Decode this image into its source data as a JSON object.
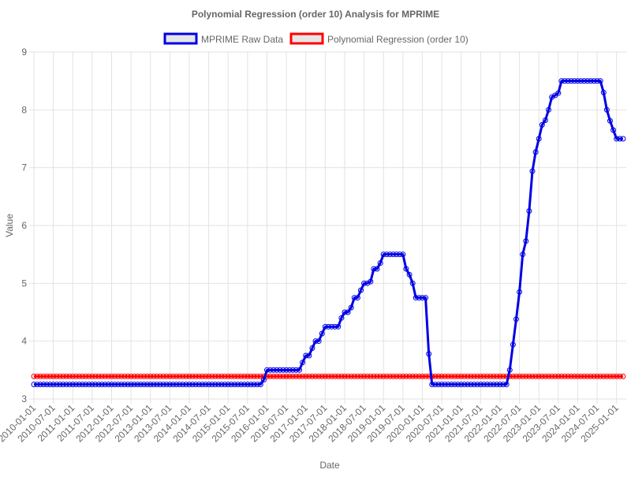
{
  "chart_data": {
    "type": "line",
    "title": "Polynomial Regression (order 10) Analysis for MPRIME",
    "xlabel": "Date",
    "ylabel": "Value",
    "ylim": [
      3,
      9
    ],
    "yticks": [
      "3",
      "4",
      "5",
      "6",
      "7",
      "8",
      "9"
    ],
    "xlim": [
      "2010-01-01",
      "2025-04-01"
    ],
    "xticks": [
      "2010-01-01",
      "2010-07-01",
      "2011-01-01",
      "2011-07-01",
      "2012-01-01",
      "2012-07-01",
      "2013-01-01",
      "2013-07-01",
      "2014-01-01",
      "2014-07-01",
      "2015-01-01",
      "2015-07-01",
      "2016-01-01",
      "2016-07-01",
      "2017-01-01",
      "2017-07-01",
      "2018-01-01",
      "2018-07-01",
      "2019-01-01",
      "2019-07-01",
      "2020-01-01",
      "2020-07-01",
      "2021-01-01",
      "2021-07-01",
      "2022-01-01",
      "2022-07-01",
      "2023-01-01",
      "2023-07-01",
      "2024-01-01",
      "2024-07-01",
      "2025-01-01"
    ],
    "grid": true,
    "legend_position": "top",
    "series": [
      {
        "name": "MPRIME Raw Data",
        "color": "#0000e6",
        "fill": "#e6e6e6",
        "frequency": "monthly",
        "start": "2010-01",
        "end": "2025-03",
        "anchors": [
          [
            "2010-01",
            3.25
          ],
          [
            "2015-11",
            3.25
          ],
          [
            "2015-12",
            3.33
          ],
          [
            "2016-01",
            3.5
          ],
          [
            "2016-11",
            3.5
          ],
          [
            "2016-12",
            3.63
          ],
          [
            "2017-01",
            3.75
          ],
          [
            "2017-02",
            3.75
          ],
          [
            "2017-03",
            3.88
          ],
          [
            "2017-04",
            4.0
          ],
          [
            "2017-05",
            4.0
          ],
          [
            "2017-06",
            4.13
          ],
          [
            "2017-07",
            4.25
          ],
          [
            "2017-11",
            4.25
          ],
          [
            "2017-12",
            4.4
          ],
          [
            "2018-01",
            4.5
          ],
          [
            "2018-02",
            4.5
          ],
          [
            "2018-03",
            4.58
          ],
          [
            "2018-04",
            4.75
          ],
          [
            "2018-05",
            4.75
          ],
          [
            "2018-06",
            4.88
          ],
          [
            "2018-07",
            5.0
          ],
          [
            "2018-08",
            5.0
          ],
          [
            "2018-09",
            5.03
          ],
          [
            "2018-10",
            5.25
          ],
          [
            "2018-11",
            5.25
          ],
          [
            "2018-12",
            5.35
          ],
          [
            "2019-01",
            5.5
          ],
          [
            "2019-07",
            5.5
          ],
          [
            "2019-08",
            5.25
          ],
          [
            "2019-09",
            5.15
          ],
          [
            "2019-10",
            5.0
          ],
          [
            "2019-11",
            4.75
          ],
          [
            "2020-02",
            4.75
          ],
          [
            "2020-03",
            3.78
          ],
          [
            "2020-04",
            3.25
          ],
          [
            "2022-03",
            3.25
          ],
          [
            "2022-04",
            3.5
          ],
          [
            "2022-05",
            3.94
          ],
          [
            "2022-06",
            4.38
          ],
          [
            "2022-07",
            4.85
          ],
          [
            "2022-08",
            5.5
          ],
          [
            "2022-09",
            5.73
          ],
          [
            "2022-10",
            6.25
          ],
          [
            "2022-11",
            6.94
          ],
          [
            "2022-12",
            7.27
          ],
          [
            "2023-01",
            7.5
          ],
          [
            "2023-02",
            7.74
          ],
          [
            "2023-03",
            7.82
          ],
          [
            "2023-04",
            8.0
          ],
          [
            "2023-05",
            8.22
          ],
          [
            "2023-06",
            8.25
          ],
          [
            "2023-07",
            8.29
          ],
          [
            "2023-08",
            8.5
          ],
          [
            "2024-08",
            8.5
          ],
          [
            "2024-09",
            8.3
          ],
          [
            "2024-10",
            8.0
          ],
          [
            "2024-11",
            7.81
          ],
          [
            "2024-12",
            7.65
          ],
          [
            "2025-01",
            7.5
          ],
          [
            "2025-03",
            7.5
          ]
        ]
      },
      {
        "name": "Polynomial Regression (order 10)",
        "color": "#ff0000",
        "fill": "#e6e6e6",
        "frequency": "monthly",
        "start": "2010-01",
        "end": "2025-03",
        "anchors": [
          [
            "2010-01",
            3.39
          ],
          [
            "2025-03",
            3.39
          ]
        ]
      }
    ]
  }
}
